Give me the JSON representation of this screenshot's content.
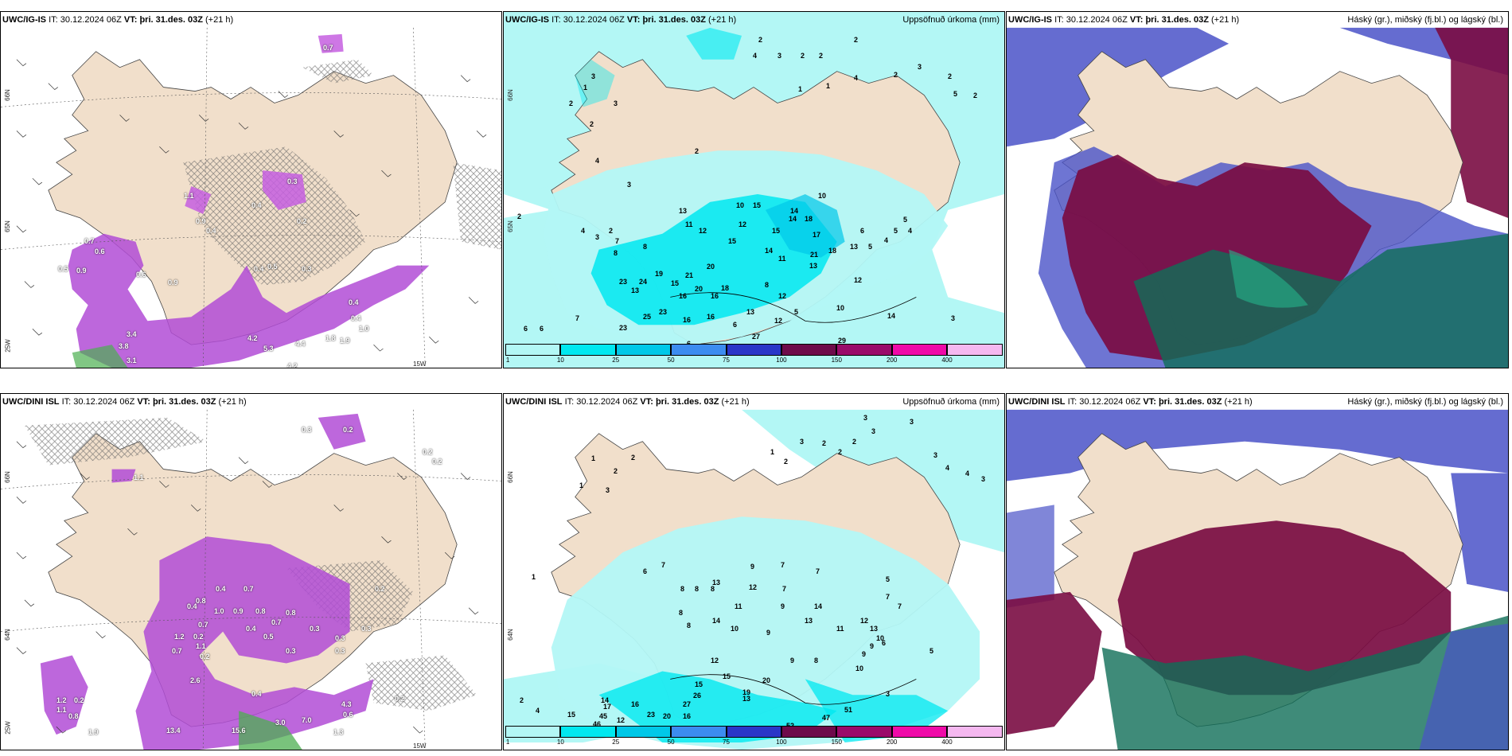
{
  "panels": {
    "tl": {
      "model": "UWC/IG-IS",
      "it_label": "IT:",
      "it": "30.12.2024 06Z",
      "vt_label": "VT:",
      "vt": "þri. 31.des. 03Z",
      "lead": "(+21 h)"
    },
    "tm": {
      "model": "UWC/IG-IS",
      "it_label": "IT:",
      "it": "30.12.2024 06Z",
      "vt_label": "VT:",
      "vt": "þri. 31.des. 03Z",
      "lead": "(+21 h)",
      "title": "Uppsöfnuð úrkoma (mm)"
    },
    "tr": {
      "model": "UWC/IG-IS",
      "it_label": "IT:",
      "it": "30.12.2024 06Z",
      "vt_label": "VT:",
      "vt": "þri. 31.des. 03Z",
      "lead": "(+21 h)",
      "title": "Háský (gr.), miðský (fj.bl.) og lágský (bl.)"
    },
    "bl": {
      "model": "UWC/DINI ISL",
      "it_label": "IT:",
      "it": "30.12.2024 06Z",
      "vt_label": "VT:",
      "vt": "þri. 31.des. 03Z",
      "lead": "(+21 h)"
    },
    "bm": {
      "model": "UWC/DINI ISL",
      "it_label": "IT:",
      "it": "30.12.2024 06Z",
      "vt_label": "VT:",
      "vt": "þri. 31.des. 03Z",
      "lead": "(+21 h)",
      "title": "Uppsöfnuð úrkoma (mm)"
    },
    "br": {
      "model": "UWC/DINI ISL",
      "it_label": "IT:",
      "it": "30.12.2024 06Z",
      "vt_label": "VT:",
      "vt": "þri. 31.des. 03Z",
      "lead": "(+21 h)",
      "title": "Háský (gr.), miðský (fj.bl.) og lágský (bl.)"
    }
  },
  "axes": {
    "lat66": "66N",
    "lat65": "65N",
    "lat64": "64N",
    "lon25": "25W",
    "lon15": "15W"
  },
  "colorbar": {
    "ticks": [
      "1",
      "10",
      "25",
      "50",
      "75",
      "100",
      "150",
      "200",
      "400"
    ],
    "colors": [
      "#b3f7f5",
      "#00e8f0",
      "#00c8e8",
      "#3c8cf0",
      "#2a36c8",
      "#6e0a4a",
      "#9a0a6a",
      "#ef0aa8",
      "#f5b8f0"
    ]
  },
  "colors": {
    "land": "#f1dfcb",
    "sea": "#ffffff",
    "precip_light": "#b3f7f5",
    "precip_mid": "#00e8f0",
    "snow": "#b24cd6",
    "high_cloud": "#0f6e58",
    "mid_cloud": "#7a0c42",
    "low_cloud": "#4a52c8",
    "low_cloud_sea": "#5a62d4"
  },
  "tl_labels": [
    "0.5",
    "0.9",
    "0.6",
    "0.7",
    "0.6",
    "0.9",
    "0.4",
    "0.5",
    "0.4",
    "0.9",
    "0.3",
    "0.4",
    "0.3",
    "0.2",
    "0.4",
    "3.4",
    "3.8",
    "3.1",
    "5.3",
    "4.4",
    "4.2",
    "1.8",
    "1.9",
    "0.4",
    "1.0",
    "1.1",
    "0.7",
    "4.2"
  ],
  "tm_labels": [
    "2",
    "4",
    "3",
    "2",
    "2",
    "2",
    "1",
    "4",
    "2",
    "3",
    "2",
    "2",
    "1",
    "3",
    "1",
    "2",
    "2",
    "3",
    "4",
    "3",
    "5",
    "2",
    "2",
    "3",
    "4",
    "2",
    "7",
    "7",
    "8",
    "6",
    "6",
    "8",
    "13",
    "10",
    "15",
    "11",
    "12",
    "14",
    "12",
    "15",
    "14",
    "18",
    "10",
    "17",
    "5",
    "5",
    "4",
    "4",
    "6",
    "5",
    "21",
    "14",
    "18",
    "13",
    "20",
    "11",
    "13",
    "15",
    "23",
    "24",
    "19",
    "21",
    "15",
    "13",
    "16",
    "20",
    "16",
    "18",
    "12",
    "25",
    "23",
    "16",
    "8",
    "5",
    "12",
    "13",
    "29",
    "23",
    "6",
    "10",
    "14",
    "3",
    "27",
    "16",
    "6",
    "12"
  ],
  "tr_labels": [],
  "bl_labels": [
    "0.3",
    "1.1",
    "0.2",
    "0.4",
    "0.7",
    "0.8",
    "0.4",
    "1.0",
    "0.9",
    "0.8",
    "0.7",
    "0.8",
    "0.3",
    "0.3",
    "0.4",
    "0.5",
    "0.3",
    "0.3",
    "0.3",
    "0.2",
    "1.2",
    "0.2",
    "0.7",
    "1.1",
    "0.2",
    "0.7",
    "1.2",
    "0.2",
    "0.8",
    "1.1",
    "2.6",
    "13.4",
    "15.6",
    "0.4",
    "7.0",
    "3.0",
    "1.3",
    "0.2",
    "0.6",
    "0.2",
    "4.3",
    "1.9",
    "0.2"
  ],
  "bm_labels": [
    "3",
    "3",
    "2",
    "3",
    "3",
    "4",
    "4",
    "3",
    "1",
    "2",
    "2",
    "2",
    "3",
    "1",
    "1",
    "2",
    "3",
    "2",
    "7",
    "6",
    "1",
    "8",
    "8",
    "8",
    "13",
    "7",
    "9",
    "7",
    "12",
    "7",
    "11",
    "9",
    "8",
    "14",
    "8",
    "9",
    "10",
    "13",
    "14",
    "11",
    "5",
    "7",
    "7",
    "6",
    "12",
    "13",
    "10",
    "9",
    "9",
    "10",
    "9",
    "8",
    "12",
    "15",
    "20",
    "15",
    "17",
    "23",
    "20",
    "26",
    "27",
    "19",
    "16",
    "45",
    "46",
    "15",
    "14",
    "16",
    "13",
    "5",
    "52",
    "47",
    "51",
    "3",
    "5",
    "2",
    "4",
    "12"
  ],
  "br_labels": []
}
